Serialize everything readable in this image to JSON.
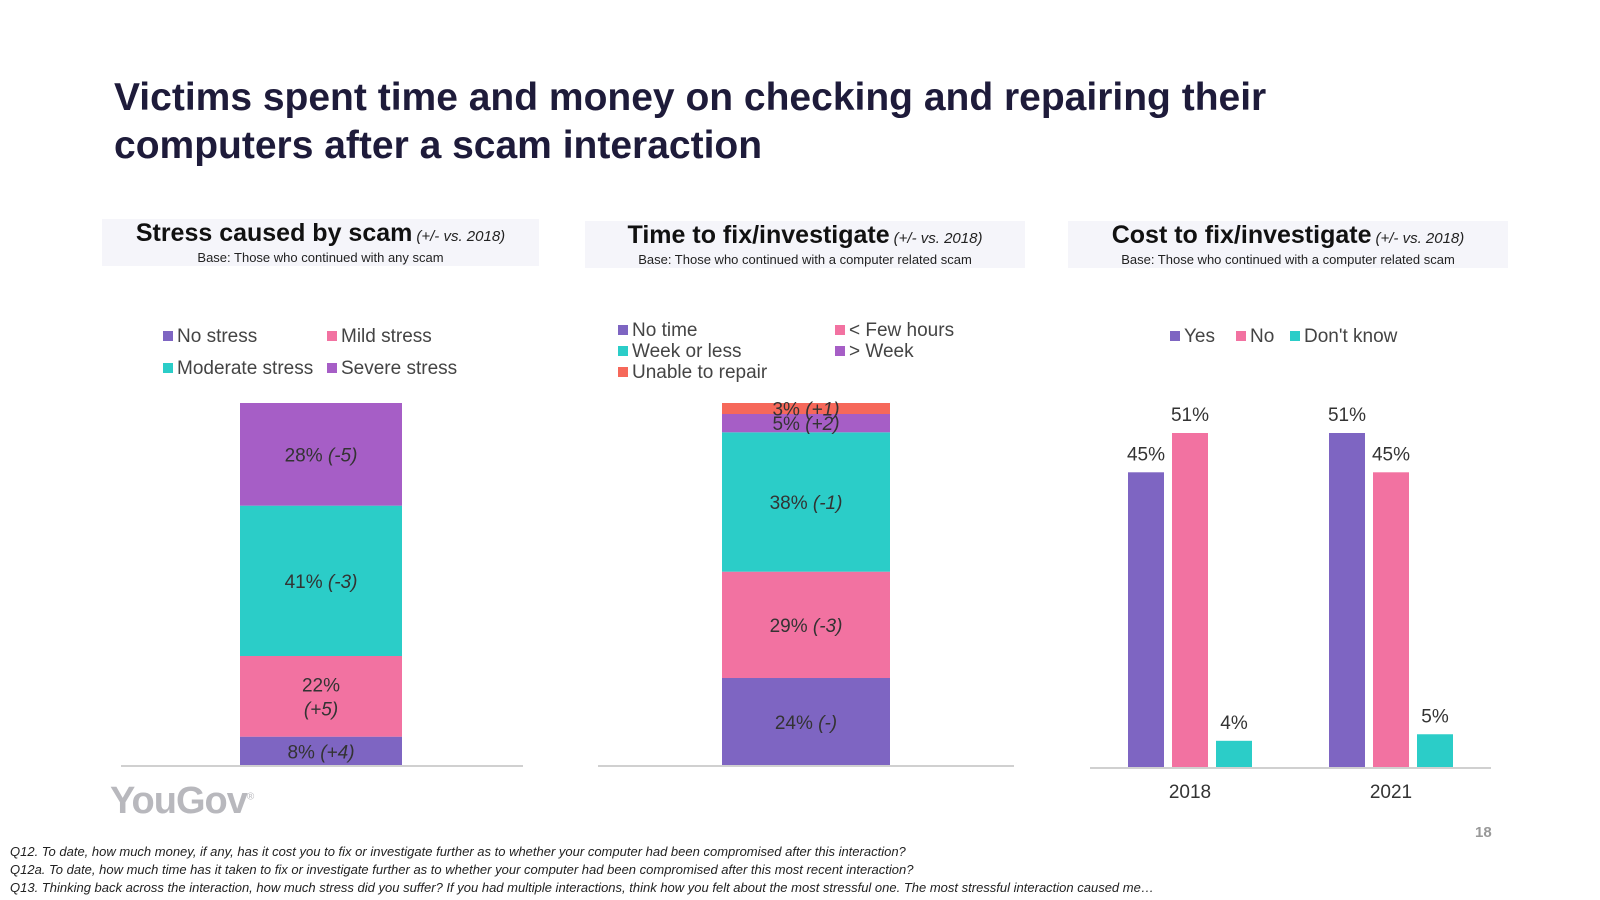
{
  "title_line1": "Victims spent time and money on checking and repairing their",
  "title_line2": "computers after a scam interaction",
  "panels": [
    {
      "heading": "Stress caused by scam",
      "sub": "(+/- vs. 2018)",
      "base": "Base: Those who continued with any scam"
    },
    {
      "heading": "Time to fix/investigate",
      "sub": "(+/- vs. 2018)",
      "base": "Base: Those who continued with a computer related scam"
    },
    {
      "heading": "Cost to fix/investigate",
      "sub": "(+/- vs. 2018)",
      "base": "Base: Those who continued with a computer related scam"
    }
  ],
  "colors": {
    "purple": "#7e65c2",
    "pink": "#f272a1",
    "teal": "#2bcdc8",
    "violet": "#a65ec6",
    "coral": "#f6685a"
  },
  "chart_data": [
    {
      "type": "bar",
      "stacked": true,
      "title": "Stress caused by scam",
      "series": [
        {
          "name": "No stress",
          "value": 8,
          "change": "(+4)",
          "color": "#7e65c2"
        },
        {
          "name": "Mild stress",
          "value": 22,
          "change": "(+5)",
          "color": "#f272a1"
        },
        {
          "name": "Moderate stress",
          "value": 41,
          "change": "(-3)",
          "color": "#2bcdc8"
        },
        {
          "name": "Severe stress",
          "value": 28,
          "change": "(-5)",
          "color": "#a65ec6"
        }
      ],
      "legend_position": "top"
    },
    {
      "type": "bar",
      "stacked": true,
      "title": "Time to fix/investigate",
      "series": [
        {
          "name": "No time",
          "value": 24,
          "change": "(-)",
          "color": "#7e65c2"
        },
        {
          "name": "< Few hours",
          "value": 29,
          "change": "(-3)",
          "color": "#f272a1"
        },
        {
          "name": "Week or less",
          "value": 38,
          "change": "(-1)",
          "color": "#2bcdc8"
        },
        {
          "name": "> Week",
          "value": 5,
          "change": "(+2)",
          "color": "#a65ec6"
        },
        {
          "name": "Unable to repair",
          "value": 3,
          "change": "(+1)",
          "color": "#f6685a"
        }
      ],
      "legend_position": "top"
    },
    {
      "type": "bar",
      "title": "Cost to fix/investigate",
      "categories": [
        "2018",
        "2021"
      ],
      "series": [
        {
          "name": "Yes",
          "values": [
            45,
            51
          ],
          "color": "#7e65c2"
        },
        {
          "name": "No",
          "values": [
            51,
            45
          ],
          "color": "#f272a1"
        },
        {
          "name": "Don't know",
          "values": [
            4,
            5
          ],
          "color": "#2bcdc8"
        }
      ],
      "legend_position": "top",
      "grid": false
    }
  ],
  "logo": "YouGov",
  "page_number": "18",
  "footnotes": [
    "Q12. To date, how much money, if any, has it cost you to fix or investigate further as to whether your computer had been compromised after this interaction?",
    "Q12a. To date, how much time has it taken to fix or investigate further as to whether your computer had been compromised after this most recent interaction?",
    "Q13. Thinking back across the interaction, how much stress did you suffer? If you had multiple interactions, think how you felt about the most stressful one. The most stressful interaction caused me…"
  ]
}
